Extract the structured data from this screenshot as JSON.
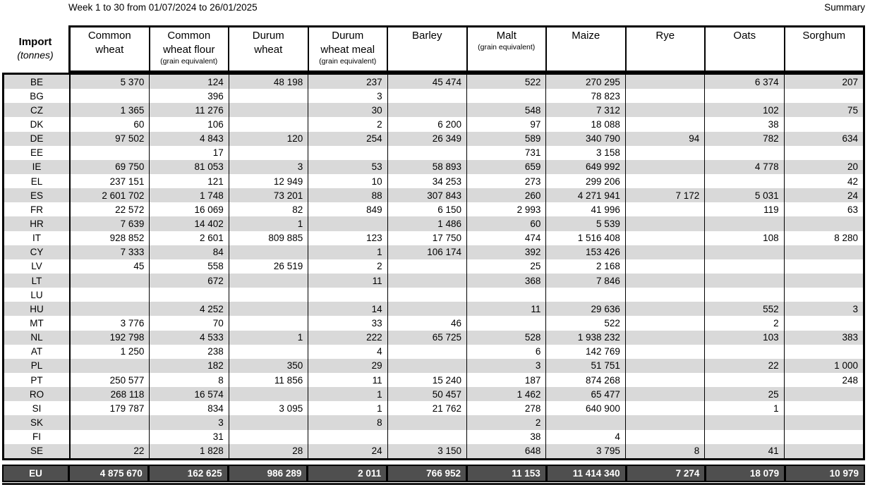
{
  "page": {
    "title": "Week 1 to 30 from 01/07/2024 to 26/01/2025",
    "corner_label": "Summary"
  },
  "table": {
    "row_header_title": "Import",
    "row_header_subtitle": "(tonnes)",
    "columns": [
      {
        "line1": "Common",
        "line2": "wheat",
        "sub": ""
      },
      {
        "line1": "Common",
        "line2": "wheat flour",
        "sub": "(grain equivalent)"
      },
      {
        "line1": "Durum",
        "line2": "wheat",
        "sub": ""
      },
      {
        "line1": "Durum",
        "line2": "wheat meal",
        "sub": "(grain equivalent)"
      },
      {
        "line1": "Barley",
        "line2": "",
        "sub": ""
      },
      {
        "line1": "Malt",
        "line2": "",
        "sub": "(grain equivalent)"
      },
      {
        "line1": "Maize",
        "line2": "",
        "sub": ""
      },
      {
        "line1": "Rye",
        "line2": "",
        "sub": ""
      },
      {
        "line1": "Oats",
        "line2": "",
        "sub": ""
      },
      {
        "line1": "Sorghum",
        "line2": "",
        "sub": ""
      }
    ],
    "rows": [
      {
        "code": "BE",
        "values": [
          "5 370",
          "124",
          "48 198",
          "237",
          "45 474",
          "522",
          "270 295",
          "",
          "6 374",
          "207"
        ]
      },
      {
        "code": "BG",
        "values": [
          "",
          "396",
          "",
          "3",
          "",
          "",
          "78 823",
          "",
          "",
          ""
        ]
      },
      {
        "code": "CZ",
        "values": [
          "1 365",
          "11 276",
          "",
          "30",
          "",
          "548",
          "7 312",
          "",
          "102",
          "75"
        ]
      },
      {
        "code": "DK",
        "values": [
          "60",
          "106",
          "",
          "2",
          "6 200",
          "97",
          "18 088",
          "",
          "38",
          ""
        ]
      },
      {
        "code": "DE",
        "values": [
          "97 502",
          "4 843",
          "120",
          "254",
          "26 349",
          "589",
          "340 790",
          "94",
          "782",
          "634"
        ]
      },
      {
        "code": "EE",
        "values": [
          "",
          "17",
          "",
          "",
          "",
          "731",
          "3 158",
          "",
          "",
          ""
        ]
      },
      {
        "code": "IE",
        "values": [
          "69 750",
          "81 053",
          "3",
          "53",
          "58 893",
          "659",
          "649 992",
          "",
          "4 778",
          "20"
        ]
      },
      {
        "code": "EL",
        "values": [
          "237 151",
          "121",
          "12 949",
          "10",
          "34 253",
          "273",
          "299 206",
          "",
          "",
          "42"
        ]
      },
      {
        "code": "ES",
        "values": [
          "2 601 702",
          "1 748",
          "73 201",
          "88",
          "307 843",
          "260",
          "4 271 941",
          "7 172",
          "5 031",
          "24"
        ]
      },
      {
        "code": "FR",
        "values": [
          "22 572",
          "16 069",
          "82",
          "849",
          "6 150",
          "2 993",
          "41 996",
          "",
          "119",
          "63"
        ]
      },
      {
        "code": "HR",
        "values": [
          "7 639",
          "14 402",
          "1",
          "",
          "1 486",
          "60",
          "5 539",
          "",
          "",
          ""
        ]
      },
      {
        "code": "IT",
        "values": [
          "928 852",
          "2 601",
          "809 885",
          "123",
          "17 750",
          "474",
          "1 516 408",
          "",
          "108",
          "8 280"
        ]
      },
      {
        "code": "CY",
        "values": [
          "7 333",
          "84",
          "",
          "1",
          "106 174",
          "392",
          "153 426",
          "",
          "",
          ""
        ]
      },
      {
        "code": "LV",
        "values": [
          "45",
          "558",
          "26 519",
          "2",
          "",
          "25",
          "2 168",
          "",
          "",
          ""
        ]
      },
      {
        "code": "LT",
        "values": [
          "",
          "672",
          "",
          "11",
          "",
          "368",
          "7 846",
          "",
          "",
          ""
        ]
      },
      {
        "code": "LU",
        "values": [
          "",
          "",
          "",
          "",
          "",
          "",
          "",
          "",
          "",
          ""
        ]
      },
      {
        "code": "HU",
        "values": [
          "",
          "4 252",
          "",
          "14",
          "",
          "11",
          "29 636",
          "",
          "552",
          "3"
        ]
      },
      {
        "code": "MT",
        "values": [
          "3 776",
          "70",
          "",
          "33",
          "46",
          "",
          "522",
          "",
          "2",
          ""
        ]
      },
      {
        "code": "NL",
        "values": [
          "192 798",
          "4 533",
          "1",
          "222",
          "65 725",
          "528",
          "1 938 232",
          "",
          "103",
          "383"
        ]
      },
      {
        "code": "AT",
        "values": [
          "1 250",
          "238",
          "",
          "4",
          "",
          "6",
          "142 769",
          "",
          "",
          ""
        ]
      },
      {
        "code": "PL",
        "values": [
          "",
          "182",
          "350",
          "29",
          "",
          "3",
          "51 751",
          "",
          "22",
          "1 000"
        ]
      },
      {
        "code": "PT",
        "values": [
          "250 577",
          "8",
          "11 856",
          "11",
          "15 240",
          "187",
          "874 268",
          "",
          "",
          "248"
        ]
      },
      {
        "code": "RO",
        "values": [
          "268 118",
          "16 574",
          "",
          "1",
          "50 457",
          "1 462",
          "65 477",
          "",
          "25",
          ""
        ]
      },
      {
        "code": "SI",
        "values": [
          "179 787",
          "834",
          "3 095",
          "1",
          "21 762",
          "278",
          "640 900",
          "",
          "1",
          ""
        ]
      },
      {
        "code": "SK",
        "values": [
          "",
          "3",
          "",
          "8",
          "",
          "2",
          "",
          "",
          "",
          ""
        ]
      },
      {
        "code": "FI",
        "values": [
          "",
          "31",
          "",
          "",
          "",
          "38",
          "4",
          "",
          "",
          ""
        ]
      },
      {
        "code": "SE",
        "values": [
          "22",
          "1 828",
          "28",
          "24",
          "3 150",
          "648",
          "3 795",
          "8",
          "41",
          ""
        ]
      }
    ],
    "total": {
      "code": "EU",
      "values": [
        "4 875 670",
        "162 625",
        "986 289",
        "2 011",
        "766 952",
        "11 153",
        "11 414 340",
        "7 274",
        "18 079",
        "10 979"
      ]
    },
    "colors": {
      "row_alt": "#d9d9d9",
      "total_bg": "#4f4f4f",
      "total_text": "#ffffff",
      "border": "#000000"
    }
  }
}
